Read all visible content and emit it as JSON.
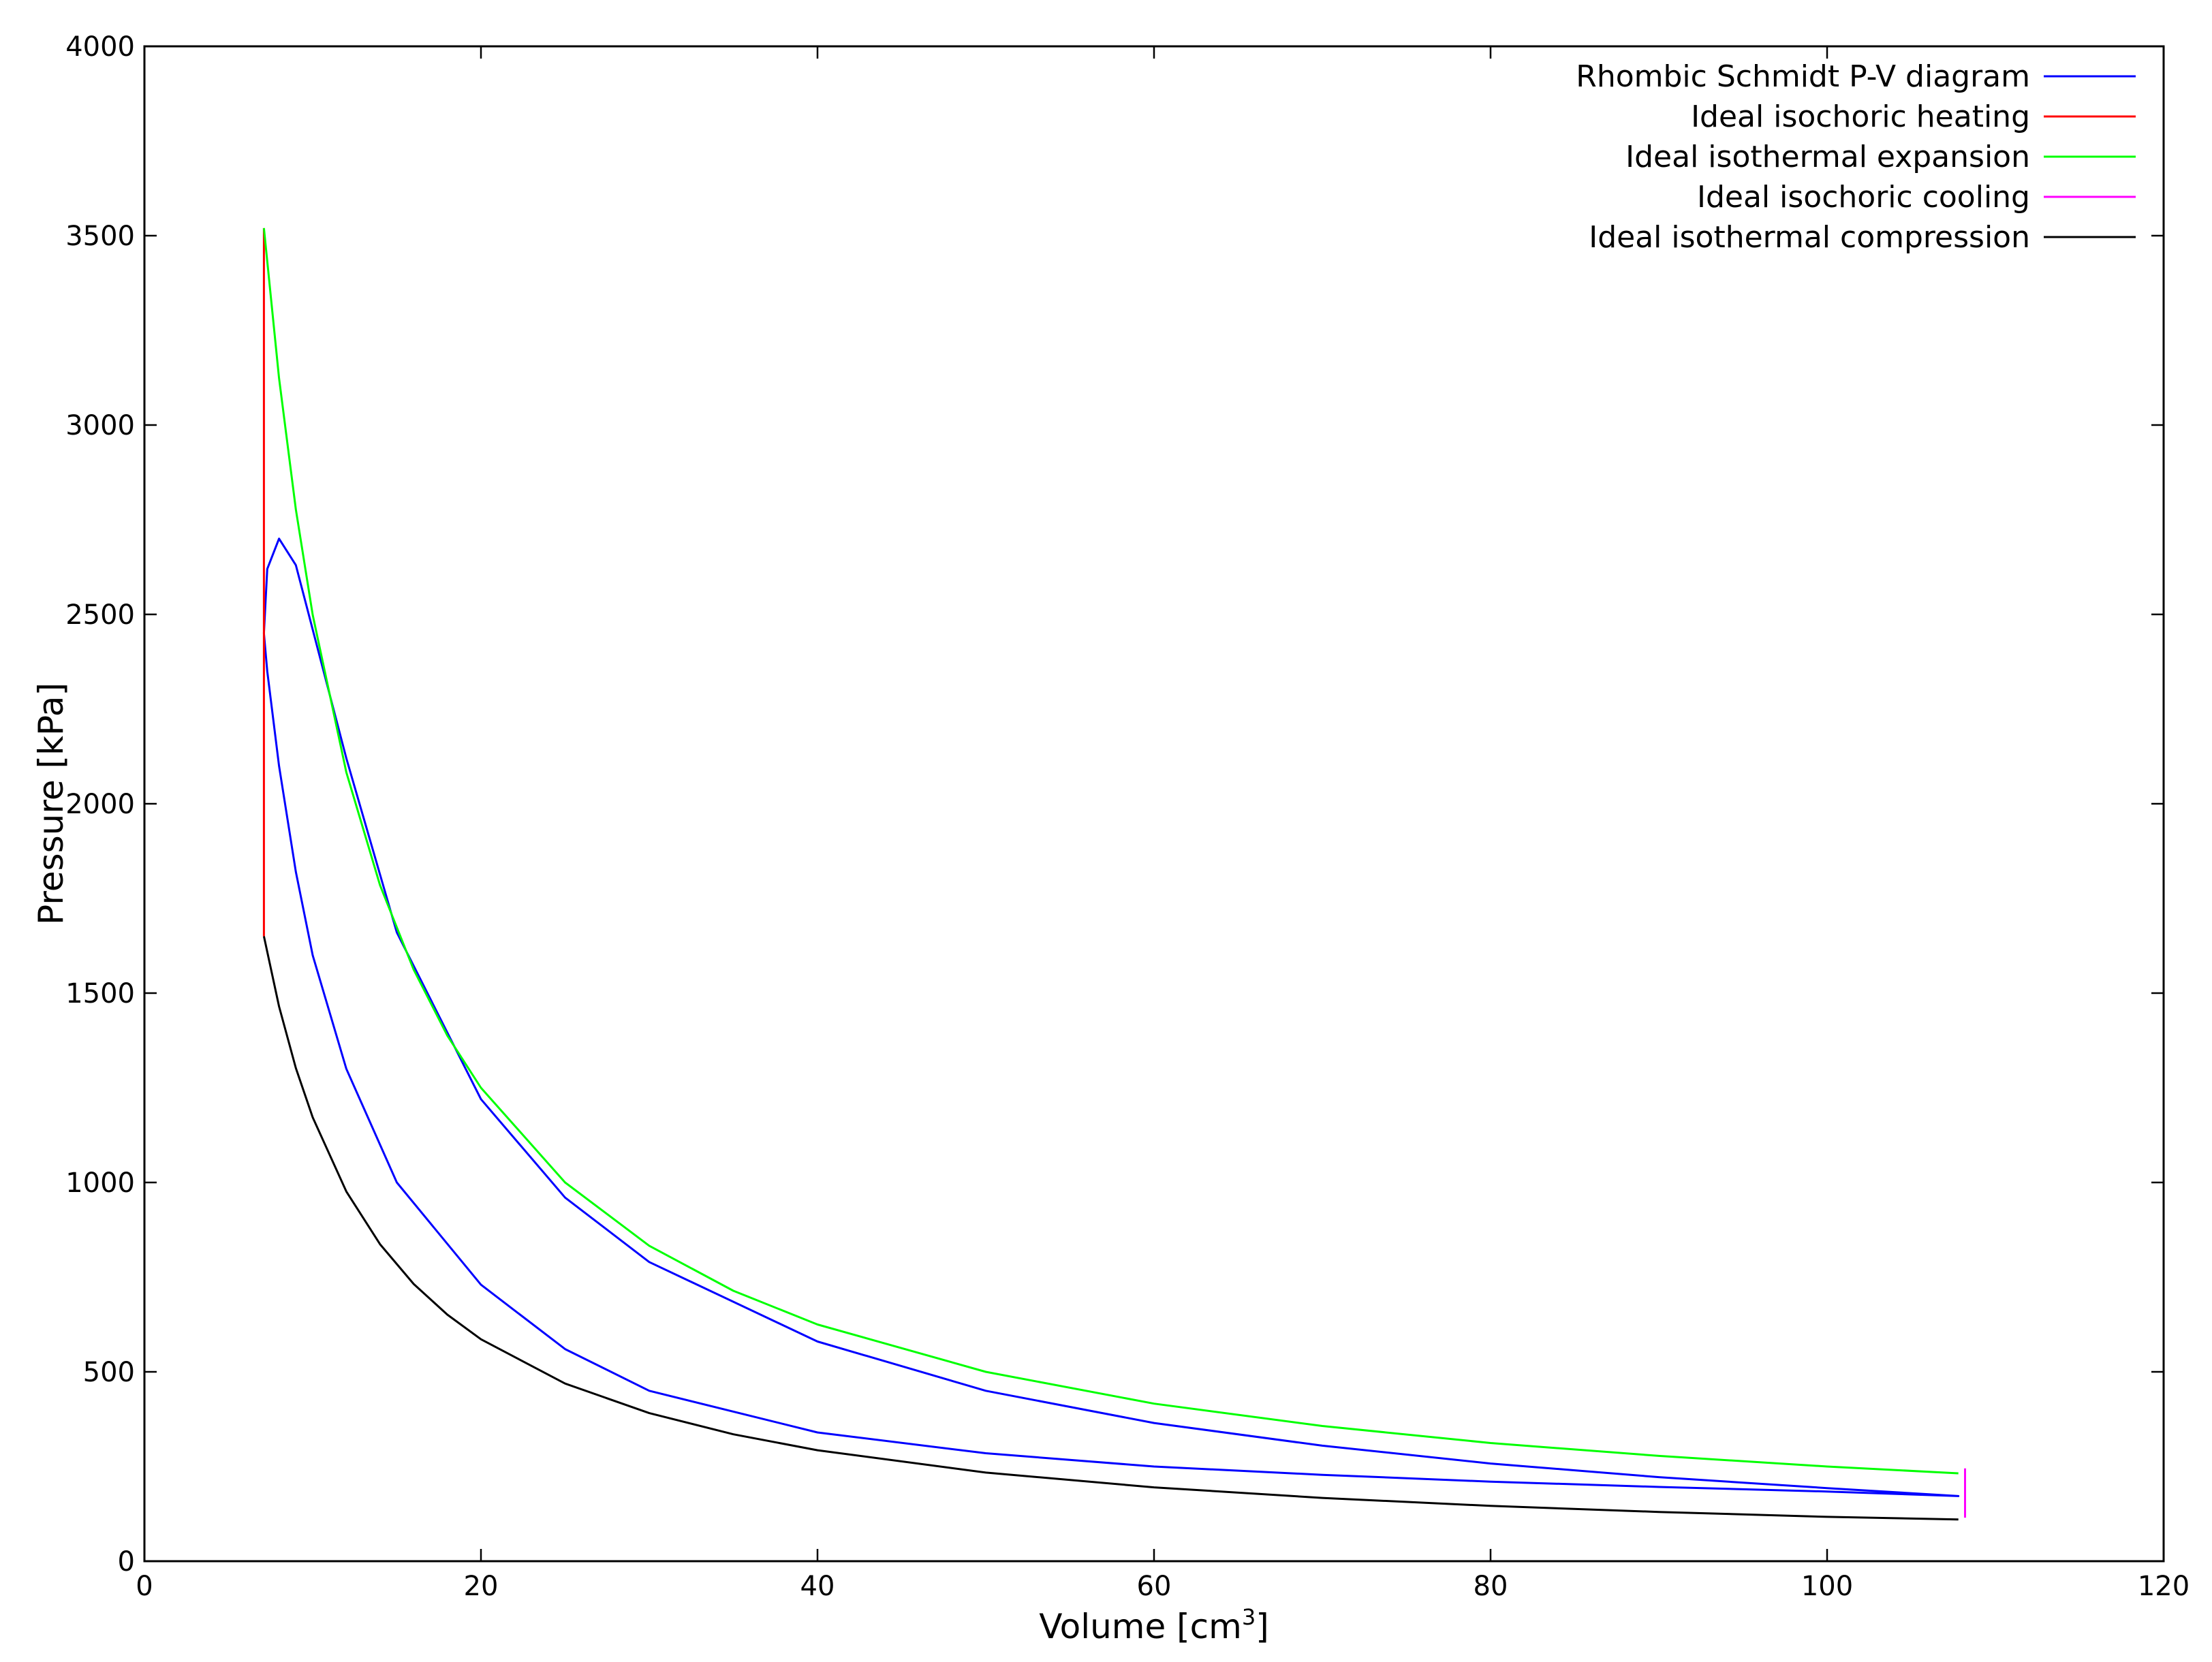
{
  "chart_data": {
    "type": "line",
    "xlabel": "Volume [cm",
    "xlabel_sup": "3",
    "xlabel_suffix": "]",
    "ylabel": "Pressure [kPa]",
    "xlim": [
      0,
      120
    ],
    "ylim": [
      0,
      4000
    ],
    "x_ticks": [
      "0",
      "20",
      "40",
      "60",
      "80",
      "100",
      "120"
    ],
    "y_ticks": [
      "0",
      "500",
      "1000",
      "1500",
      "2000",
      "2500",
      "3000",
      "3500",
      "4000"
    ],
    "grid": false,
    "legend_position": "top-right",
    "series": [
      {
        "name": "Rhombic Schmidt P-V diagram",
        "color": "#0000ff",
        "x": [
          7.1,
          7.3,
          8.0,
          9.0,
          10.0,
          12.0,
          15.0,
          20.0,
          25.0,
          30.0,
          40.0,
          50.0,
          60.0,
          70.0,
          80.0,
          90.0,
          100.0,
          107.8,
          100.0,
          90.0,
          80.0,
          70.0,
          60.0,
          50.0,
          40.0,
          30.0,
          25.0,
          20.0,
          15.0,
          12.0,
          10.0,
          9.0,
          8.0,
          7.3,
          7.1
        ],
        "y": [
          2450,
          2620,
          2700,
          2630,
          2460,
          2120,
          1660,
          1220,
          960,
          790,
          580,
          450,
          365,
          305,
          258,
          222,
          193,
          172,
          184,
          196,
          210,
          228,
          250,
          285,
          340,
          450,
          560,
          730,
          1000,
          1300,
          1600,
          1820,
          2100,
          2350,
          2450
        ]
      },
      {
        "name": "Ideal isochoric heating",
        "color": "#ff0000",
        "x": [
          7.1,
          7.1
        ],
        "y": [
          1650,
          3520
        ]
      },
      {
        "name": "Ideal isothermal expansion",
        "color": "#00ff00",
        "x": [
          7.1,
          8,
          9,
          10,
          12,
          14,
          16,
          18,
          20,
          25,
          30,
          35,
          40,
          50,
          60,
          70,
          80,
          90,
          100,
          107.8
        ],
        "y": [
          3520,
          3124,
          2777,
          2499,
          2083,
          1785,
          1562,
          1388,
          1250,
          1000,
          833,
          714,
          625,
          500,
          416,
          357,
          312,
          278,
          250,
          232
        ]
      },
      {
        "name": "Ideal isochoric cooling",
        "color": "#ff00ff",
        "x": [
          108.2,
          108.2
        ],
        "y": [
          115,
          245
        ]
      },
      {
        "name": "Ideal isothermal compression",
        "color": "#000000",
        "x": [
          7.1,
          8,
          9,
          10,
          12,
          14,
          16,
          18,
          20,
          25,
          30,
          35,
          40,
          50,
          60,
          70,
          80,
          90,
          100,
          107.8
        ],
        "y": [
          1650,
          1465,
          1302,
          1172,
          976,
          837,
          732,
          651,
          586,
          469,
          391,
          335,
          293,
          234,
          195,
          167,
          146,
          130,
          117,
          110
        ]
      }
    ]
  }
}
